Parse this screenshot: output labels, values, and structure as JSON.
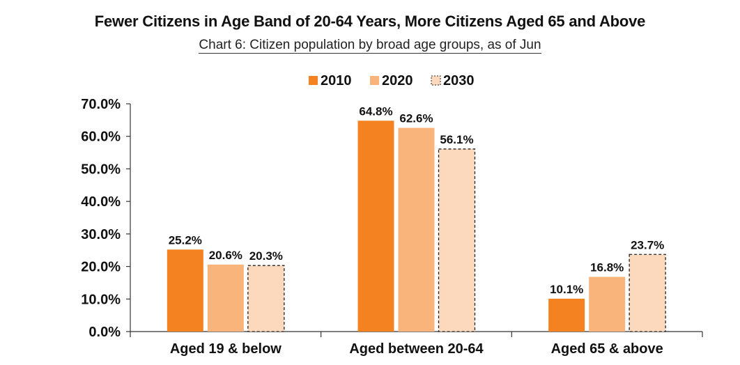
{
  "title": "Fewer Citizens in Age Band of 20-64 Years, More Citizens Aged 65 and Above",
  "subtitle": "Chart 6: Citizen population by broad age groups, as of Jun",
  "chart_data": {
    "type": "bar",
    "categories": [
      "Aged 19 & below",
      "Aged between 20-64",
      "Aged 65 & above"
    ],
    "series": [
      {
        "name": "2010",
        "values": [
          25.2,
          64.8,
          10.1
        ],
        "labels": [
          "25.2%",
          "64.8%",
          "10.1%"
        ],
        "color": "#F58220",
        "style": "solid"
      },
      {
        "name": "2020",
        "values": [
          20.6,
          62.6,
          16.8
        ],
        "labels": [
          "20.6%",
          "62.6%",
          "16.8%"
        ],
        "color": "#F9B47C",
        "style": "solid"
      },
      {
        "name": "2030",
        "values": [
          20.3,
          56.1,
          23.7
        ],
        "labels": [
          "20.3%",
          "56.1%",
          "23.7%"
        ],
        "color": "#FCD9BC",
        "style": "dashed-outline"
      }
    ],
    "yticks": [
      "0.0%",
      "10.0%",
      "20.0%",
      "30.0%",
      "40.0%",
      "50.0%",
      "60.0%",
      "70.0%"
    ],
    "ylim": [
      0,
      70
    ],
    "grid": false,
    "legend_position": "top-center"
  }
}
